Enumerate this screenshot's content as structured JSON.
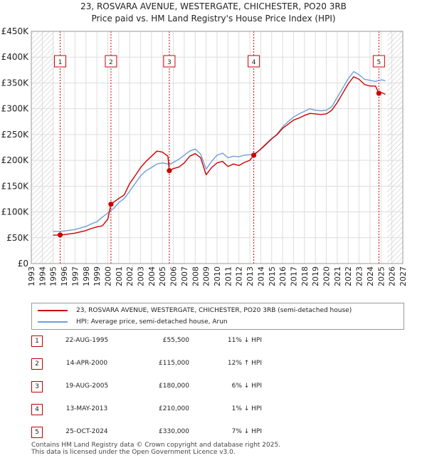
{
  "header": {
    "title_line1": "23, ROSVARA AVENUE, WESTERGATE, CHICHESTER, PO20 3RB",
    "title_line2": "Price paid vs. HM Land Registry's House Price Index (HPI)"
  },
  "colors": {
    "price_line": "#cc0000",
    "hpi_line": "#6f9fd8",
    "sale_marker": "#cc0000",
    "badge_border": "#cc0000",
    "hatch": "#c8c8c8",
    "grid": "#dddddd"
  },
  "chart_data": {
    "type": "line",
    "title": "Price paid vs. HM Land Registry's House Price Index (HPI)",
    "xlim": [
      1993,
      2027
    ],
    "ylim": [
      0,
      450000
    ],
    "ytick_values": [
      0,
      50000,
      100000,
      150000,
      200000,
      250000,
      300000,
      350000,
      400000,
      450000
    ],
    "ytick_labels": [
      "£0",
      "£50K",
      "£100K",
      "£150K",
      "£200K",
      "£250K",
      "£300K",
      "£350K",
      "£400K",
      "£450K"
    ],
    "xtick_values": [
      1993,
      1994,
      1995,
      1996,
      1997,
      1998,
      1999,
      2000,
      2001,
      2002,
      2003,
      2004,
      2005,
      2006,
      2007,
      2008,
      2009,
      2010,
      2011,
      2012,
      2013,
      2014,
      2015,
      2016,
      2017,
      2018,
      2019,
      2020,
      2021,
      2022,
      2023,
      2024,
      2025,
      2026,
      2027
    ],
    "xtick_labels": [
      "1993",
      "1994",
      "1995",
      "1996",
      "1997",
      "1998",
      "1999",
      "2000",
      "2001",
      "2002",
      "2003",
      "2004",
      "2005",
      "2006",
      "2007",
      "2008",
      "2009",
      "2010",
      "2011",
      "2012",
      "2013",
      "2014",
      "2015",
      "2016",
      "2017",
      "2018",
      "2019",
      "2020",
      "2021",
      "2022",
      "2023",
      "2024",
      "2025",
      "2026",
      "2027"
    ],
    "hatched_regions": [
      [
        1993,
        1995.08
      ],
      [
        2025.58,
        2027
      ]
    ],
    "series": [
      {
        "name": "23, ROSVARA AVENUE, WESTERGATE, CHICHESTER, PO20 3RB (semi-detached house)",
        "key": "price",
        "points": [
          [
            1995.0,
            55000
          ],
          [
            1995.64,
            55500
          ],
          [
            1996.0,
            56000
          ],
          [
            1997.0,
            59000
          ],
          [
            1998.0,
            64000
          ],
          [
            1998.5,
            68000
          ],
          [
            1999.0,
            71000
          ],
          [
            1999.5,
            73000
          ],
          [
            2000.0,
            86000
          ],
          [
            2000.29,
            115000
          ],
          [
            2000.6,
            120000
          ],
          [
            2001.0,
            126000
          ],
          [
            2001.5,
            133000
          ],
          [
            2002.0,
            155000
          ],
          [
            2002.5,
            170000
          ],
          [
            2003.0,
            186000
          ],
          [
            2003.5,
            198000
          ],
          [
            2004.0,
            208000
          ],
          [
            2004.5,
            218000
          ],
          [
            2005.0,
            216000
          ],
          [
            2005.5,
            208000
          ],
          [
            2005.63,
            180000
          ],
          [
            2006.0,
            184000
          ],
          [
            2006.5,
            187000
          ],
          [
            2007.0,
            195000
          ],
          [
            2007.5,
            208000
          ],
          [
            2008.0,
            213000
          ],
          [
            2008.5,
            205000
          ],
          [
            2009.0,
            172000
          ],
          [
            2009.5,
            186000
          ],
          [
            2010.0,
            195000
          ],
          [
            2010.5,
            198000
          ],
          [
            2011.0,
            188000
          ],
          [
            2011.5,
            193000
          ],
          [
            2012.0,
            190000
          ],
          [
            2012.5,
            196000
          ],
          [
            2013.0,
            200000
          ],
          [
            2013.36,
            210000
          ],
          [
            2014.0,
            222000
          ],
          [
            2014.5,
            232000
          ],
          [
            2015.0,
            242000
          ],
          [
            2015.5,
            250000
          ],
          [
            2016.0,
            262000
          ],
          [
            2016.5,
            270000
          ],
          [
            2017.0,
            278000
          ],
          [
            2017.5,
            282000
          ],
          [
            2018.0,
            287000
          ],
          [
            2018.5,
            291000
          ],
          [
            2019.0,
            290000
          ],
          [
            2019.5,
            289000
          ],
          [
            2020.0,
            290000
          ],
          [
            2020.5,
            297000
          ],
          [
            2021.0,
            312000
          ],
          [
            2021.5,
            330000
          ],
          [
            2022.0,
            348000
          ],
          [
            2022.5,
            362000
          ],
          [
            2023.0,
            357000
          ],
          [
            2023.5,
            347000
          ],
          [
            2024.0,
            344000
          ],
          [
            2024.5,
            344000
          ],
          [
            2024.81,
            330000
          ],
          [
            2025.1,
            331000
          ],
          [
            2025.4,
            328000
          ]
        ]
      },
      {
        "name": "HPI: Average price, semi-detached house, Arun",
        "key": "hpi",
        "points": [
          [
            1995.0,
            62000
          ],
          [
            1995.64,
            62500
          ],
          [
            1996.0,
            63000
          ],
          [
            1997.0,
            66000
          ],
          [
            1998.0,
            72000
          ],
          [
            1998.5,
            77000
          ],
          [
            1999.0,
            81000
          ],
          [
            1999.5,
            90000
          ],
          [
            2000.0,
            98000
          ],
          [
            2000.29,
            102700
          ],
          [
            2000.6,
            108000
          ],
          [
            2001.0,
            118000
          ],
          [
            2001.5,
            126000
          ],
          [
            2002.0,
            140000
          ],
          [
            2002.5,
            155000
          ],
          [
            2003.0,
            170000
          ],
          [
            2003.5,
            180000
          ],
          [
            2004.0,
            186000
          ],
          [
            2004.5,
            193000
          ],
          [
            2005.0,
            195000
          ],
          [
            2005.5,
            193000
          ],
          [
            2005.63,
            191500
          ],
          [
            2006.0,
            196000
          ],
          [
            2006.5,
            202000
          ],
          [
            2007.0,
            210000
          ],
          [
            2007.5,
            218000
          ],
          [
            2008.0,
            222000
          ],
          [
            2008.5,
            212000
          ],
          [
            2009.0,
            183000
          ],
          [
            2009.5,
            198000
          ],
          [
            2010.0,
            210000
          ],
          [
            2010.5,
            214000
          ],
          [
            2011.0,
            205000
          ],
          [
            2011.5,
            208000
          ],
          [
            2012.0,
            207000
          ],
          [
            2012.5,
            210000
          ],
          [
            2013.0,
            211000
          ],
          [
            2013.36,
            212100
          ],
          [
            2014.0,
            221000
          ],
          [
            2014.5,
            231000
          ],
          [
            2015.0,
            241000
          ],
          [
            2015.5,
            251000
          ],
          [
            2016.0,
            265000
          ],
          [
            2016.5,
            275000
          ],
          [
            2017.0,
            284000
          ],
          [
            2017.5,
            290000
          ],
          [
            2018.0,
            295000
          ],
          [
            2018.5,
            300000
          ],
          [
            2019.0,
            297000
          ],
          [
            2019.5,
            296000
          ],
          [
            2020.0,
            297000
          ],
          [
            2020.5,
            304000
          ],
          [
            2021.0,
            322000
          ],
          [
            2021.5,
            340000
          ],
          [
            2022.0,
            358000
          ],
          [
            2022.5,
            372000
          ],
          [
            2023.0,
            366000
          ],
          [
            2023.5,
            357000
          ],
          [
            2024.0,
            355000
          ],
          [
            2024.5,
            353000
          ],
          [
            2024.81,
            354800
          ],
          [
            2025.1,
            356000
          ],
          [
            2025.4,
            354000
          ]
        ]
      }
    ],
    "sales": [
      {
        "id": "1",
        "year": 1995.64,
        "price": 55500
      },
      {
        "id": "2",
        "year": 2000.29,
        "price": 115000
      },
      {
        "id": "3",
        "year": 2005.63,
        "price": 180000
      },
      {
        "id": "4",
        "year": 2013.36,
        "price": 210000
      },
      {
        "id": "5",
        "year": 2024.81,
        "price": 330000
      }
    ]
  },
  "legend": {
    "price_label": "23, ROSVARA AVENUE, WESTERGATE, CHICHESTER, PO20 3RB (semi-detached house)",
    "hpi_label": "HPI: Average price, semi-detached house, Arun"
  },
  "sales_table": [
    {
      "id": "1",
      "date": "22-AUG-1995",
      "price": "£55,500",
      "hpi": "11% ↓ HPI"
    },
    {
      "id": "2",
      "date": "14-APR-2000",
      "price": "£115,000",
      "hpi": "12% ↑ HPI"
    },
    {
      "id": "3",
      "date": "19-AUG-2005",
      "price": "£180,000",
      "hpi": "6% ↓ HPI"
    },
    {
      "id": "4",
      "date": "13-MAY-2013",
      "price": "£210,000",
      "hpi": "1% ↓ HPI"
    },
    {
      "id": "5",
      "date": "25-OCT-2024",
      "price": "£330,000",
      "hpi": "7% ↓ HPI"
    }
  ],
  "footer": {
    "line1": "Contains HM Land Registry data © Crown copyright and database right 2025.",
    "line2": "This data is licensed under the Open Government Licence v3.0."
  }
}
